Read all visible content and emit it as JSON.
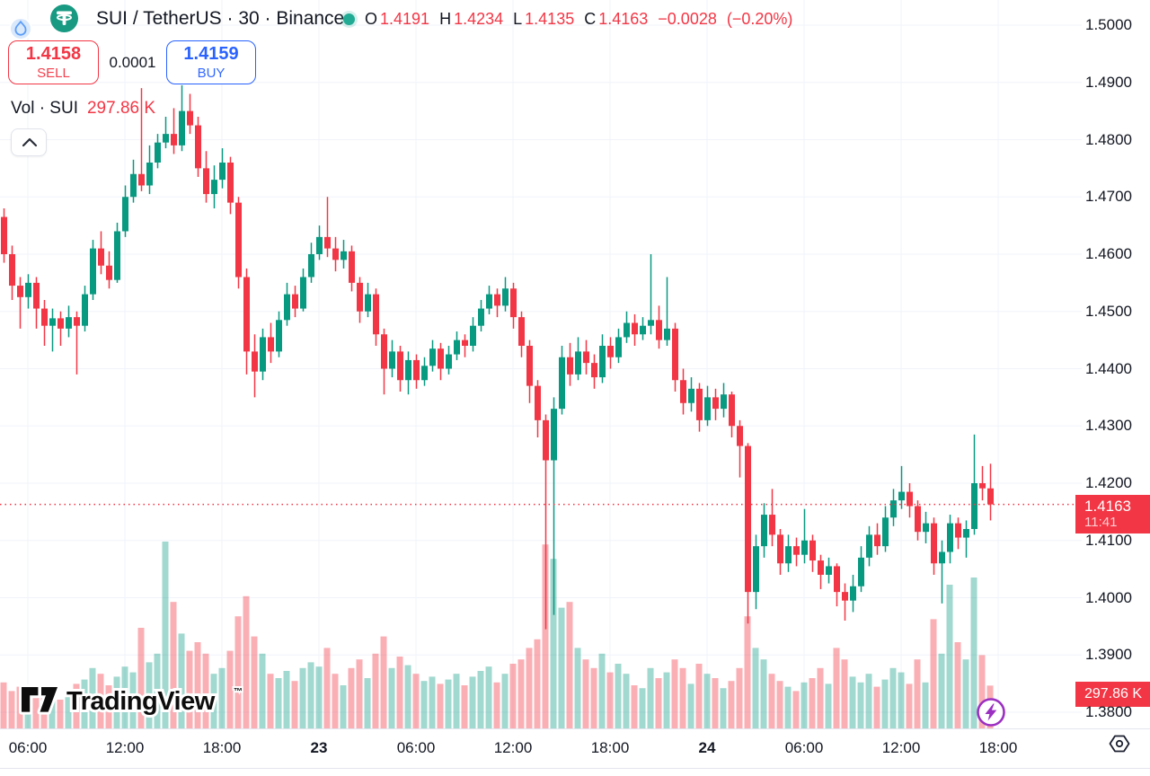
{
  "header": {
    "symbol_title": "SUI / TetherUS · 30 · Binance",
    "market_status": "open",
    "ohlc_labels": {
      "o": "O",
      "h": "H",
      "l": "L",
      "c": "C"
    },
    "ohlc": {
      "o": "1.4191",
      "h": "1.4234",
      "l": "1.4135",
      "c": "1.4163"
    },
    "change": "−0.0028",
    "change_pct": "(−0.20%)"
  },
  "trade": {
    "sell_price": "1.4158",
    "sell_label": "SELL",
    "spread": "0.0001",
    "buy_price": "1.4159",
    "buy_label": "BUY"
  },
  "indicator": {
    "label": "Vol · SUI",
    "value": "297.86 K"
  },
  "price_scale": {
    "ticks": [
      "1.5000",
      "1.4900",
      "1.4800",
      "1.4700",
      "1.4600",
      "1.4500",
      "1.4400",
      "1.4300",
      "1.4200",
      "1.4100",
      "1.4000",
      "1.3900",
      "1.3800"
    ],
    "last_price_label": "1.4163",
    "countdown": "11:41",
    "volume_badge": "297.86 K"
  },
  "time_scale": {
    "labels": [
      {
        "t": "06:00",
        "bold": false
      },
      {
        "t": "12:00",
        "bold": false
      },
      {
        "t": "18:00",
        "bold": false
      },
      {
        "t": "23",
        "bold": true
      },
      {
        "t": "06:00",
        "bold": false
      },
      {
        "t": "12:00",
        "bold": false
      },
      {
        "t": "18:00",
        "bold": false
      },
      {
        "t": "24",
        "bold": true
      },
      {
        "t": "06:00",
        "bold": false
      },
      {
        "t": "12:00",
        "bold": false
      },
      {
        "t": "18:00",
        "bold": false
      }
    ]
  },
  "watermark": {
    "brand": "TradingView",
    "tm": "™"
  },
  "colors": {
    "up": "#089981",
    "down": "#f23645",
    "volume_up": "rgba(8,153,129,0.38)",
    "volume_down": "rgba(242,54,69,0.40)",
    "grid": "#f0f3fa",
    "buy_blue": "#2962ff",
    "sell_red": "#f23645",
    "axis_text": "#131722",
    "badge_red": "#f23645",
    "status_green": "#22ab94",
    "quick_trade_purple": "#9b2fc2"
  },
  "chart_data": {
    "type": "candlestick",
    "symbol": "SUI / TetherUS",
    "exchange": "Binance",
    "interval_minutes": 30,
    "ylim": [
      1.38,
      1.5
    ],
    "price_gridlines": [
      1.5,
      1.49,
      1.48,
      1.47,
      1.46,
      1.45,
      1.44,
      1.43,
      1.42,
      1.41,
      1.4,
      1.39,
      1.38
    ],
    "x_axis_labels": [
      "06:00",
      "12:00",
      "18:00",
      "23",
      "06:00",
      "12:00",
      "18:00",
      "24",
      "06:00",
      "12:00",
      "18:00"
    ],
    "current_price": 1.4163,
    "last_candle": {
      "open": 1.4191,
      "high": 1.4234,
      "low": 1.4135,
      "close": 1.4163,
      "change": -0.0028,
      "change_pct": -0.2
    },
    "current_volume_k": 297.86,
    "candles_ohlc": [
      [
        1.4665,
        1.468,
        1.4585,
        1.46
      ],
      [
        1.46,
        1.4615,
        1.452,
        1.4545
      ],
      [
        1.4545,
        1.456,
        1.447,
        1.4525
      ],
      [
        1.4525,
        1.4565,
        1.4505,
        1.455
      ],
      [
        1.455,
        1.456,
        1.447,
        1.4505
      ],
      [
        1.4505,
        1.452,
        1.444,
        1.4475
      ],
      [
        1.4475,
        1.4505,
        1.443,
        1.4488
      ],
      [
        1.4488,
        1.45,
        1.444,
        1.447
      ],
      [
        1.447,
        1.451,
        1.4455,
        1.449
      ],
      [
        1.449,
        1.45,
        1.439,
        1.4475
      ],
      [
        1.4475,
        1.4545,
        1.4465,
        1.453
      ],
      [
        1.453,
        1.4625,
        1.452,
        1.461
      ],
      [
        1.461,
        1.464,
        1.4565,
        1.458
      ],
      [
        1.458,
        1.4605,
        1.454,
        1.4555
      ],
      [
        1.4555,
        1.4655,
        1.455,
        1.464
      ],
      [
        1.464,
        1.472,
        1.463,
        1.47
      ],
      [
        1.47,
        1.4765,
        1.469,
        1.474
      ],
      [
        1.474,
        1.489,
        1.471,
        1.472
      ],
      [
        1.472,
        1.479,
        1.4705,
        1.476
      ],
      [
        1.476,
        1.481,
        1.475,
        1.4795
      ],
      [
        1.4795,
        1.484,
        1.4785,
        1.481
      ],
      [
        1.481,
        1.4855,
        1.4775,
        1.479
      ],
      [
        1.479,
        1.4895,
        1.478,
        1.485
      ],
      [
        1.485,
        1.488,
        1.481,
        1.4825
      ],
      [
        1.4825,
        1.484,
        1.4735,
        1.475
      ],
      [
        1.475,
        1.478,
        1.469,
        1.4705
      ],
      [
        1.4705,
        1.4755,
        1.468,
        1.473
      ],
      [
        1.473,
        1.4785,
        1.4715,
        1.476
      ],
      [
        1.476,
        1.477,
        1.467,
        1.469
      ],
      [
        1.469,
        1.47,
        1.454,
        1.456
      ],
      [
        1.456,
        1.4575,
        1.439,
        1.443
      ],
      [
        1.443,
        1.446,
        1.435,
        1.4395
      ],
      [
        1.4395,
        1.447,
        1.438,
        1.4455
      ],
      [
        1.4455,
        1.448,
        1.441,
        1.443
      ],
      [
        1.443,
        1.45,
        1.442,
        1.4485
      ],
      [
        1.4485,
        1.455,
        1.4475,
        1.453
      ],
      [
        1.453,
        1.4545,
        1.449,
        1.4505
      ],
      [
        1.4505,
        1.4575,
        1.45,
        1.456
      ],
      [
        1.456,
        1.462,
        1.455,
        1.46
      ],
      [
        1.46,
        1.465,
        1.459,
        1.463
      ],
      [
        1.463,
        1.47,
        1.4595,
        1.461
      ],
      [
        1.461,
        1.463,
        1.457,
        1.459
      ],
      [
        1.459,
        1.4625,
        1.4575,
        1.4605
      ],
      [
        1.4605,
        1.4615,
        1.4535,
        1.455
      ],
      [
        1.455,
        1.456,
        1.448,
        1.45
      ],
      [
        1.45,
        1.455,
        1.449,
        1.453
      ],
      [
        1.453,
        1.454,
        1.444,
        1.446
      ],
      [
        1.446,
        1.447,
        1.4355,
        1.44
      ],
      [
        1.44,
        1.445,
        1.4385,
        1.443
      ],
      [
        1.443,
        1.444,
        1.436,
        1.438
      ],
      [
        1.438,
        1.443,
        1.4355,
        1.4415
      ],
      [
        1.4415,
        1.4425,
        1.4365,
        1.438
      ],
      [
        1.438,
        1.442,
        1.437,
        1.4405
      ],
      [
        1.4405,
        1.445,
        1.4395,
        1.4435
      ],
      [
        1.4435,
        1.4445,
        1.438,
        1.44
      ],
      [
        1.44,
        1.444,
        1.439,
        1.4425
      ],
      [
        1.4425,
        1.4465,
        1.4415,
        1.445
      ],
      [
        1.445,
        1.446,
        1.442,
        1.444
      ],
      [
        1.444,
        1.449,
        1.443,
        1.4475
      ],
      [
        1.4475,
        1.452,
        1.4465,
        1.4505
      ],
      [
        1.4505,
        1.4545,
        1.4495,
        1.453
      ],
      [
        1.453,
        1.454,
        1.449,
        1.451
      ],
      [
        1.451,
        1.456,
        1.45,
        1.454
      ],
      [
        1.454,
        1.455,
        1.447,
        1.449
      ],
      [
        1.449,
        1.45,
        1.442,
        1.444
      ],
      [
        1.444,
        1.445,
        1.434,
        1.437
      ],
      [
        1.437,
        1.438,
        1.428,
        1.431
      ],
      [
        1.431,
        1.432,
        1.3945,
        1.424
      ],
      [
        1.424,
        1.435,
        1.397,
        1.433
      ],
      [
        1.433,
        1.444,
        1.432,
        1.442
      ],
      [
        1.442,
        1.4445,
        1.437,
        1.439
      ],
      [
        1.439,
        1.4455,
        1.438,
        1.443
      ],
      [
        1.443,
        1.445,
        1.439,
        1.441
      ],
      [
        1.441,
        1.4425,
        1.4365,
        1.4385
      ],
      [
        1.4385,
        1.446,
        1.4375,
        1.444
      ],
      [
        1.444,
        1.4455,
        1.44,
        1.442
      ],
      [
        1.442,
        1.447,
        1.441,
        1.4455
      ],
      [
        1.4455,
        1.45,
        1.4445,
        1.448
      ],
      [
        1.448,
        1.4495,
        1.444,
        1.446
      ],
      [
        1.446,
        1.449,
        1.445,
        1.4475
      ],
      [
        1.4475,
        1.46,
        1.446,
        1.4485
      ],
      [
        1.4485,
        1.451,
        1.4435,
        1.445
      ],
      [
        1.445,
        1.456,
        1.444,
        1.447
      ],
      [
        1.447,
        1.448,
        1.436,
        1.438
      ],
      [
        1.438,
        1.44,
        1.432,
        1.434
      ],
      [
        1.434,
        1.4385,
        1.4325,
        1.4365
      ],
      [
        1.4365,
        1.4375,
        1.429,
        1.431
      ],
      [
        1.431,
        1.437,
        1.43,
        1.435
      ],
      [
        1.435,
        1.4365,
        1.431,
        1.433
      ],
      [
        1.433,
        1.4375,
        1.4315,
        1.4355
      ],
      [
        1.4355,
        1.436,
        1.428,
        1.43
      ],
      [
        1.43,
        1.431,
        1.421,
        1.4265
      ],
      [
        1.4265,
        1.427,
        1.3955,
        1.401
      ],
      [
        1.401,
        1.411,
        1.398,
        1.409
      ],
      [
        1.409,
        1.4165,
        1.407,
        1.4145
      ],
      [
        1.4145,
        1.419,
        1.409,
        1.411
      ],
      [
        1.411,
        1.412,
        1.404,
        1.406
      ],
      [
        1.406,
        1.411,
        1.4045,
        1.409
      ],
      [
        1.409,
        1.4105,
        1.4055,
        1.4075
      ],
      [
        1.4075,
        1.4155,
        1.406,
        1.41
      ],
      [
        1.41,
        1.411,
        1.4045,
        1.4065
      ],
      [
        1.4065,
        1.4075,
        1.4015,
        1.404
      ],
      [
        1.404,
        1.407,
        1.4025,
        1.4055
      ],
      [
        1.4055,
        1.406,
        1.3985,
        1.401
      ],
      [
        1.401,
        1.4025,
        1.396,
        1.3995
      ],
      [
        1.3995,
        1.404,
        1.3975,
        1.402
      ],
      [
        1.402,
        1.409,
        1.401,
        1.407
      ],
      [
        1.407,
        1.4125,
        1.4055,
        1.411
      ],
      [
        1.411,
        1.413,
        1.4075,
        1.409
      ],
      [
        1.409,
        1.416,
        1.408,
        1.414
      ],
      [
        1.414,
        1.419,
        1.4125,
        1.417
      ],
      [
        1.417,
        1.423,
        1.4155,
        1.4185
      ],
      [
        1.4185,
        1.42,
        1.414,
        1.416
      ],
      [
        1.416,
        1.417,
        1.41,
        1.4115
      ],
      [
        1.4115,
        1.415,
        1.4095,
        1.413
      ],
      [
        1.413,
        1.414,
        1.404,
        1.406
      ],
      [
        1.406,
        1.41,
        1.399,
        1.408
      ],
      [
        1.408,
        1.4145,
        1.406,
        1.413
      ],
      [
        1.413,
        1.414,
        1.4085,
        1.4105
      ],
      [
        1.4105,
        1.4135,
        1.407,
        1.412
      ],
      [
        1.412,
        1.4285,
        1.411,
        1.42
      ],
      [
        1.42,
        1.423,
        1.417,
        1.4191
      ],
      [
        1.4191,
        1.4234,
        1.4135,
        1.4163
      ]
    ],
    "volumes_k": [
      320,
      260,
      290,
      210,
      240,
      280,
      230,
      200,
      260,
      310,
      340,
      420,
      380,
      300,
      360,
      430,
      390,
      700,
      460,
      520,
      1300,
      880,
      660,
      540,
      600,
      520,
      380,
      420,
      540,
      780,
      920,
      640,
      520,
      380,
      350,
      400,
      330,
      420,
      460,
      430,
      560,
      380,
      300,
      420,
      480,
      350,
      520,
      640,
      420,
      500,
      440,
      380,
      330,
      360,
      310,
      340,
      380,
      300,
      360,
      400,
      430,
      320,
      380,
      450,
      480,
      560,
      620,
      1280,
      1180,
      840,
      880,
      560,
      480,
      420,
      520,
      390,
      450,
      380,
      300,
      280,
      420,
      350,
      390,
      480,
      420,
      310,
      450,
      380,
      350,
      280,
      330,
      420,
      780,
      560,
      480,
      380,
      330,
      290,
      260,
      320,
      350,
      420,
      310,
      560,
      480,
      360,
      320,
      380,
      290,
      340,
      420,
      390,
      310,
      480,
      320,
      760,
      520,
      1000,
      600,
      480,
      1050,
      510,
      297.86
    ]
  }
}
